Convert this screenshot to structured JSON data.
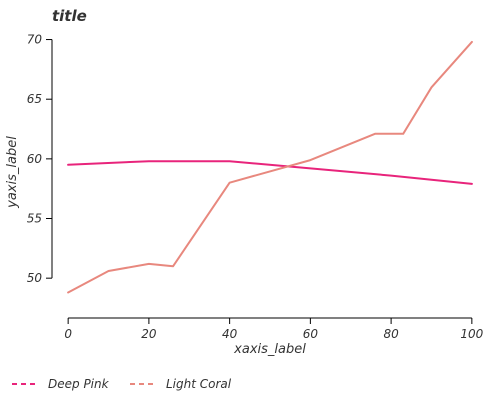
{
  "chart_data": {
    "type": "line",
    "title": "title",
    "xlabel": "xaxis_label",
    "ylabel": "yaxis_label",
    "xlim": [
      -4,
      104
    ],
    "ylim": [
      47.5,
      70.8
    ],
    "x_ticks": [
      0,
      20,
      40,
      60,
      80,
      100
    ],
    "y_ticks": [
      50,
      55,
      60,
      65,
      70
    ],
    "grid": false,
    "legend_position": "bottom",
    "series": [
      {
        "name": "Deep Pink",
        "color": "#e8247b",
        "x": [
          0,
          20,
          40,
          60,
          80,
          100
        ],
        "y": [
          59.5,
          59.8,
          59.8,
          59.2,
          58.6,
          57.9
        ]
      },
      {
        "name": "Light Coral",
        "color": "#e8887e",
        "x": [
          0,
          10,
          20,
          26,
          40,
          60,
          76,
          83,
          90,
          100
        ],
        "y": [
          48.8,
          50.6,
          51.2,
          51.0,
          58.0,
          59.9,
          62.1,
          62.1,
          66.0,
          69.8
        ]
      }
    ]
  }
}
